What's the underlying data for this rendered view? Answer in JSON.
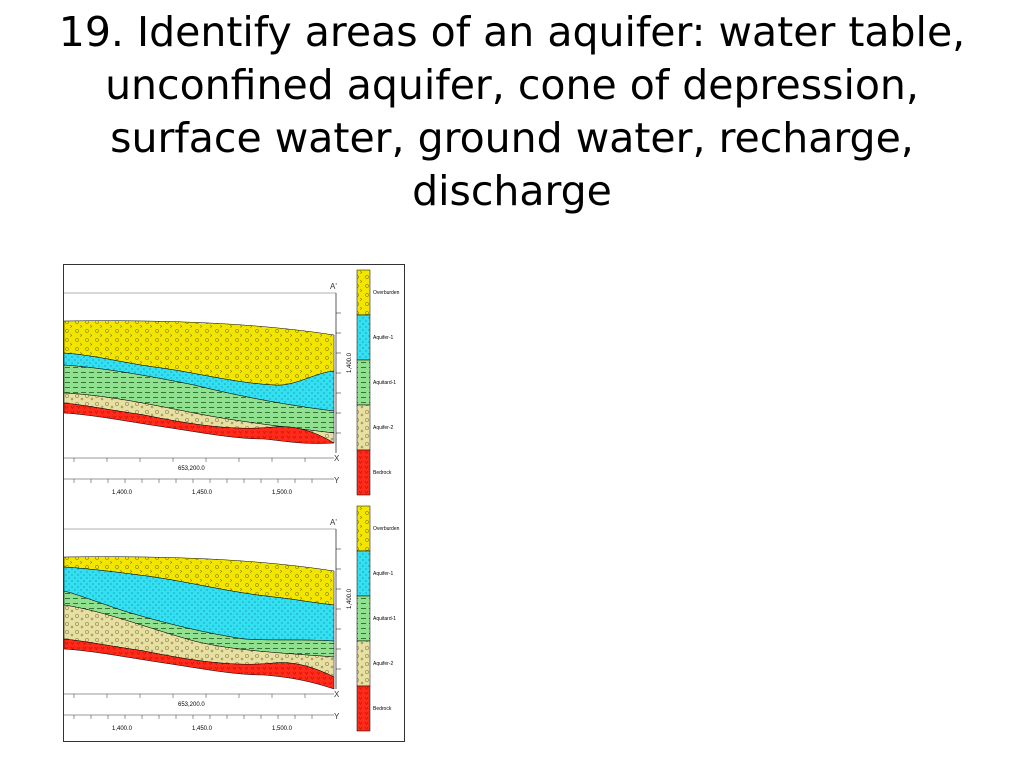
{
  "slide": {
    "title": "19. Identify areas of an aquifer: water table, unconfined aquifer, cone of depression, surface water, ground water, recharge, discharge"
  },
  "panels": [
    {
      "section_label": "A'",
      "vertical_tick": "1,400.0",
      "easting": "653,200.0",
      "axis_x": "X",
      "axis_y": "Y",
      "x_ticks": [
        "1,400.0",
        "1,450.0",
        "1,500.0"
      ]
    },
    {
      "section_label": "A'",
      "vertical_tick": "1,400.0",
      "easting": "653,200.0",
      "axis_x": "X",
      "axis_y": "Y",
      "x_ticks": [
        "1,400.0",
        "1,450.0",
        "1,500.0"
      ]
    }
  ],
  "legend": {
    "units": [
      {
        "label": "Overburden",
        "color": "#f2e600",
        "icon": "overburden-swatch"
      },
      {
        "label": "Aquifer-1",
        "color": "#33e0f2",
        "icon": "aquifer-1-swatch"
      },
      {
        "label": "Aquitard-1",
        "color": "#8fe08f",
        "icon": "aquitard-1-swatch"
      },
      {
        "label": "Aquifer-2",
        "color": "#e8e0a0",
        "icon": "aquifer-2-swatch"
      },
      {
        "label": "Bedrock",
        "color": "#ff2a1a",
        "icon": "bedrock-swatch"
      }
    ]
  }
}
